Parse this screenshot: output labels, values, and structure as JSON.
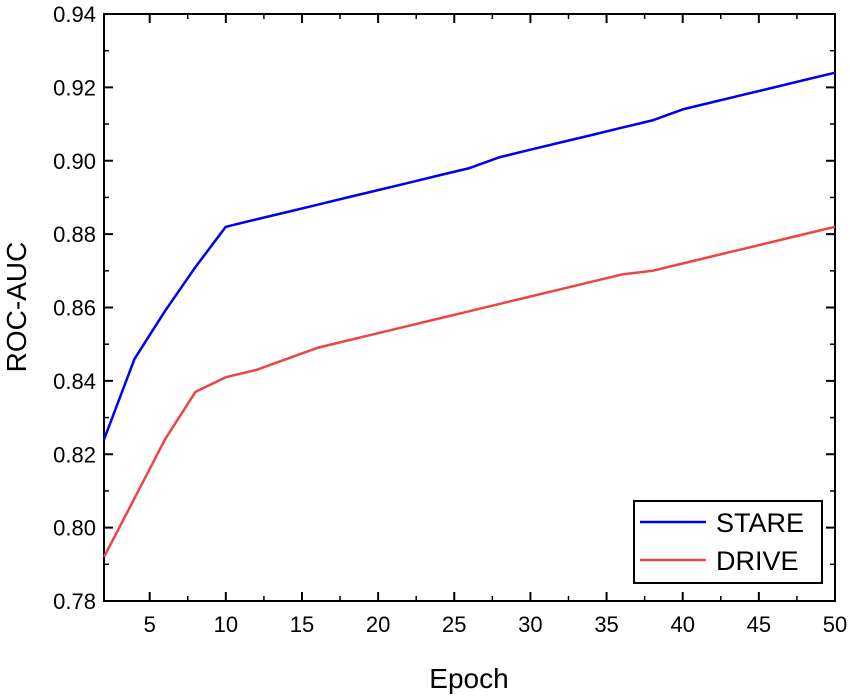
{
  "chart_data": {
    "type": "line",
    "title": "",
    "xlabel": "Epoch",
    "ylabel": "ROC-AUC",
    "xlim": [
      2,
      50
    ],
    "ylim": [
      0.78,
      0.94
    ],
    "x_ticks": [
      5,
      10,
      15,
      20,
      25,
      30,
      35,
      40,
      45,
      50
    ],
    "x_tick_labels": [
      "5",
      "10",
      "15",
      "20",
      "25",
      "30",
      "35",
      "40",
      "45",
      "50"
    ],
    "y_ticks": [
      0.78,
      0.8,
      0.82,
      0.84,
      0.86,
      0.88,
      0.9,
      0.92,
      0.94
    ],
    "y_tick_labels": [
      "0.78",
      "0.80",
      "0.82",
      "0.84",
      "0.86",
      "0.88",
      "0.90",
      "0.92",
      "0.94"
    ],
    "grid": false,
    "legend_position": "bottom-right",
    "series": [
      {
        "name": "STARE",
        "color": "#0000ee",
        "x": [
          2,
          4,
          6,
          8,
          10,
          12,
          14,
          16,
          18,
          20,
          22,
          24,
          26,
          28,
          30,
          32,
          34,
          36,
          38,
          40,
          42,
          44,
          46,
          48,
          50
        ],
        "y": [
          0.824,
          0.846,
          0.859,
          0.871,
          0.882,
          0.884,
          0.886,
          0.888,
          0.89,
          0.892,
          0.894,
          0.896,
          0.898,
          0.901,
          0.903,
          0.905,
          0.907,
          0.909,
          0.911,
          0.914,
          0.916,
          0.918,
          0.92,
          0.922,
          0.924
        ]
      },
      {
        "name": "DRIVE",
        "color": "#ee4444",
        "x": [
          2,
          4,
          6,
          8,
          10,
          12,
          14,
          16,
          18,
          20,
          22,
          24,
          26,
          28,
          30,
          32,
          34,
          36,
          38,
          40,
          42,
          44,
          46,
          48,
          50
        ],
        "y": [
          0.792,
          0.808,
          0.824,
          0.837,
          0.841,
          0.843,
          0.846,
          0.849,
          0.851,
          0.853,
          0.855,
          0.857,
          0.859,
          0.861,
          0.863,
          0.865,
          0.867,
          0.869,
          0.87,
          0.872,
          0.874,
          0.876,
          0.878,
          0.88,
          0.882
        ]
      }
    ]
  }
}
